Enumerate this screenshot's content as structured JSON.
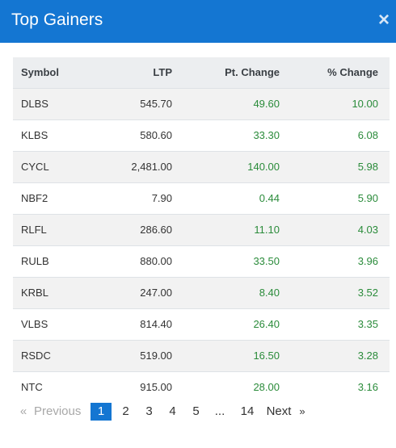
{
  "header": {
    "title": "Top Gainers",
    "close_icon": "×"
  },
  "table": {
    "columns": [
      "Symbol",
      "LTP",
      "Pt. Change",
      "% Change"
    ],
    "rows": [
      {
        "symbol": "DLBS",
        "ltp": "545.70",
        "pt_change": "49.60",
        "pct_change": "10.00"
      },
      {
        "symbol": "KLBS",
        "ltp": "580.60",
        "pt_change": "33.30",
        "pct_change": "6.08"
      },
      {
        "symbol": "CYCL",
        "ltp": "2,481.00",
        "pt_change": "140.00",
        "pct_change": "5.98"
      },
      {
        "symbol": "NBF2",
        "ltp": "7.90",
        "pt_change": "0.44",
        "pct_change": "5.90"
      },
      {
        "symbol": "RLFL",
        "ltp": "286.60",
        "pt_change": "11.10",
        "pct_change": "4.03"
      },
      {
        "symbol": "RULB",
        "ltp": "880.00",
        "pt_change": "33.50",
        "pct_change": "3.96"
      },
      {
        "symbol": "KRBL",
        "ltp": "247.00",
        "pt_change": "8.40",
        "pct_change": "3.52"
      },
      {
        "symbol": "VLBS",
        "ltp": "814.40",
        "pt_change": "26.40",
        "pct_change": "3.35"
      },
      {
        "symbol": "RSDC",
        "ltp": "519.00",
        "pt_change": "16.50",
        "pct_change": "3.28"
      },
      {
        "symbol": "NTC",
        "ltp": "915.00",
        "pt_change": "28.00",
        "pct_change": "3.16"
      }
    ]
  },
  "pagination": {
    "prev_arrow": "«",
    "prev_label": "Previous",
    "pages": [
      "1",
      "2",
      "3",
      "4",
      "5"
    ],
    "active_page": "1",
    "ellipsis": "...",
    "last_page": "14",
    "next_label": "Next",
    "next_arrow": "»"
  },
  "colors": {
    "header_bg": "#1476d2",
    "positive": "#2a8b3a",
    "row_stripe": "#f2f2f2"
  }
}
